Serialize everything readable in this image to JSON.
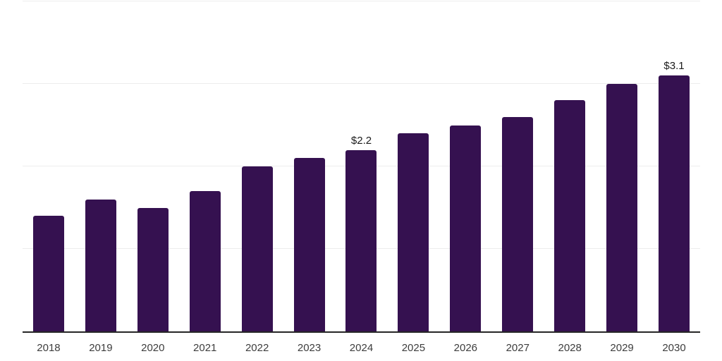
{
  "chart_data": {
    "type": "bar",
    "title": "",
    "categories": [
      "2018",
      "2019",
      "2020",
      "2021",
      "2022",
      "2023",
      "2024",
      "2025",
      "2026",
      "2027",
      "2028",
      "2029",
      "2030"
    ],
    "values": [
      1.4,
      1.6,
      1.5,
      1.7,
      2.0,
      2.1,
      2.2,
      2.4,
      2.5,
      2.6,
      2.8,
      3.0,
      3.1
    ],
    "data_labels": {
      "2024": "$2.2",
      "2030": "$3.1"
    },
    "xlabel": "",
    "ylabel": "",
    "ylim": [
      0,
      4
    ],
    "gridline_step": 1,
    "grid": true,
    "legend": false,
    "y_axis_labels_visible": false,
    "colors": {
      "bar": "#351150",
      "gridline": "#ededed",
      "axis_line": "#262626",
      "tick_label": "#3d3d3d",
      "data_label": "#1a1a1a",
      "background": "#ffffff"
    }
  }
}
